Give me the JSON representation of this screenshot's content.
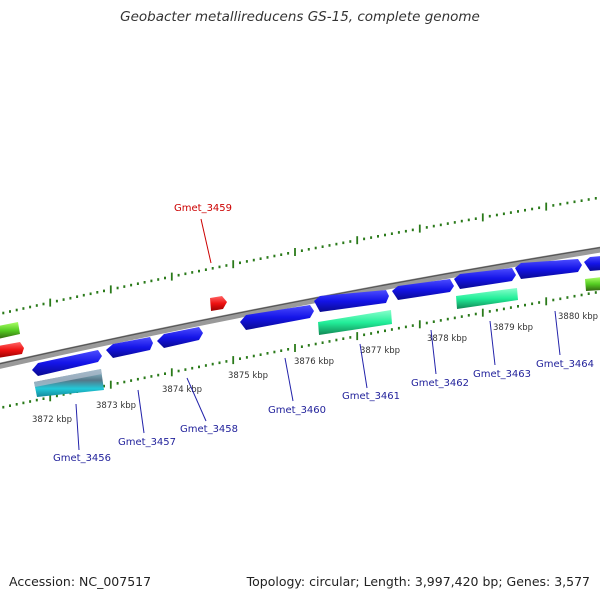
{
  "title": "Geobacter metallireducens GS-15, complete genome",
  "footer": {
    "accession": "Accession: NC_007517",
    "summary": "Topology: circular; Length: 3,997,420 bp; Genes: 3,577"
  },
  "kbp_labels": [
    "3872 kbp",
    "3873 kbp",
    "3874 kbp",
    "3875 kbp",
    "3876 kbp",
    "3877 kbp",
    "3878 kbp",
    "3879 kbp",
    "3880 kbp"
  ],
  "genes": [
    {
      "id": "Gmet_3456",
      "color": "#1f1f9a"
    },
    {
      "id": "Gmet_3457",
      "color": "#1f1f9a"
    },
    {
      "id": "Gmet_3458",
      "color": "#1f1f9a"
    },
    {
      "id": "Gmet_3459",
      "color": "#cc0000"
    },
    {
      "id": "Gmet_3460",
      "color": "#1f1f9a"
    },
    {
      "id": "Gmet_3461",
      "color": "#1f1f9a"
    },
    {
      "id": "Gmet_3462",
      "color": "#1f1f9a"
    },
    {
      "id": "Gmet_3463",
      "color": "#1f1f9a"
    },
    {
      "id": "Gmet_3464",
      "color": "#1f1f9a"
    }
  ],
  "colors": {
    "cds": "#1010e0",
    "trna": "#ee1111",
    "rna": "#22ee99",
    "rrna_cyan": "#22c8d8",
    "misc": "#55cc22",
    "backbone": "#888888",
    "ticks": "#2a7a1a"
  }
}
